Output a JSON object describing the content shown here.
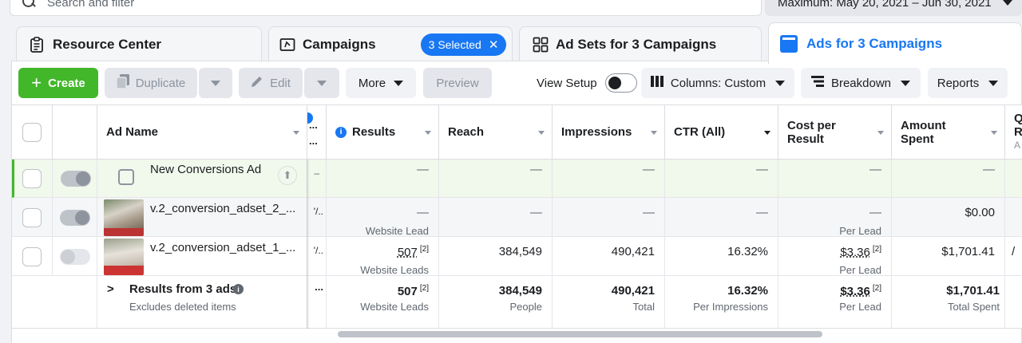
{
  "search": {
    "placeholder": "Search and filter"
  },
  "date_range": {
    "label": "Maximum: May 20, 2021 – Jun 30, 2021"
  },
  "tabs": {
    "resource": "Resource Center",
    "campaigns": "Campaigns",
    "selected_badge": "3 Selected",
    "adsets": "Ad Sets for 3 Campaigns",
    "ads": "Ads for 3 Campaigns"
  },
  "toolbar": {
    "create": "Create",
    "duplicate": "Duplicate",
    "edit": "Edit",
    "more": "More",
    "preview": "Preview",
    "view_setup": "View Setup",
    "columns": "Columns: Custom",
    "breakdown": "Breakdown",
    "reports": "Reports"
  },
  "columns": {
    "ad_name": "Ad Name",
    "results": "Results",
    "reach": "Reach",
    "impressions": "Impressions",
    "ctr": "CTR (All)",
    "cost_line1": "Cost per",
    "cost_line2": "Result",
    "spent_line1": "Amount",
    "spent_line2": "Spent",
    "partial_line1": "Q",
    "partial_line2": "R",
    "partial_line3": "A",
    "hidden_ellipsis": "..."
  },
  "rows": [
    {
      "name": "New Conversions Ad",
      "hidden": "–",
      "results": "—",
      "results_sub": "",
      "reach": "—",
      "impressions": "—",
      "ctr": "—",
      "cost": "—",
      "cost_sub": "",
      "spent": "—"
    },
    {
      "name": "v.2_conversion_adset_2_...",
      "hidden": "'/..",
      "results": "—",
      "results_sub": "Website Lead",
      "reach": "—",
      "impressions": "—",
      "ctr": "—",
      "cost": "—",
      "cost_sub": "Per Lead",
      "spent": "$0.00"
    },
    {
      "name": "v.2_conversion_adset_1_...",
      "hidden": "'/..",
      "results": "507",
      "results_sup": "[2]",
      "results_sub": "Website Leads",
      "reach": "384,549",
      "impressions": "490,421",
      "ctr": "16.32%",
      "cost": "$3.36",
      "cost_sup": "[2]",
      "cost_sub": "Per Lead",
      "spent": "$1,701.41",
      "partial": "/"
    }
  ],
  "summary": {
    "title": "Results from 3 ads",
    "subtitle": "Excludes deleted items",
    "hidden": "...",
    "results": "507",
    "results_sup": "[2]",
    "results_sub": "Website Leads",
    "reach": "384,549",
    "reach_sub": "People",
    "impressions": "490,421",
    "impressions_sub": "Total",
    "ctr": "16.32%",
    "ctr_sub": "Per Impressions",
    "cost": "$3.36",
    "cost_sup": "[2]",
    "cost_sub": "Per Lead",
    "spent": "$1,701.41",
    "spent_sub": "Total Spent"
  },
  "colors": {
    "accent": "#1877f2",
    "create": "#42b72a",
    "selected_row": "#f1f8ec"
  }
}
